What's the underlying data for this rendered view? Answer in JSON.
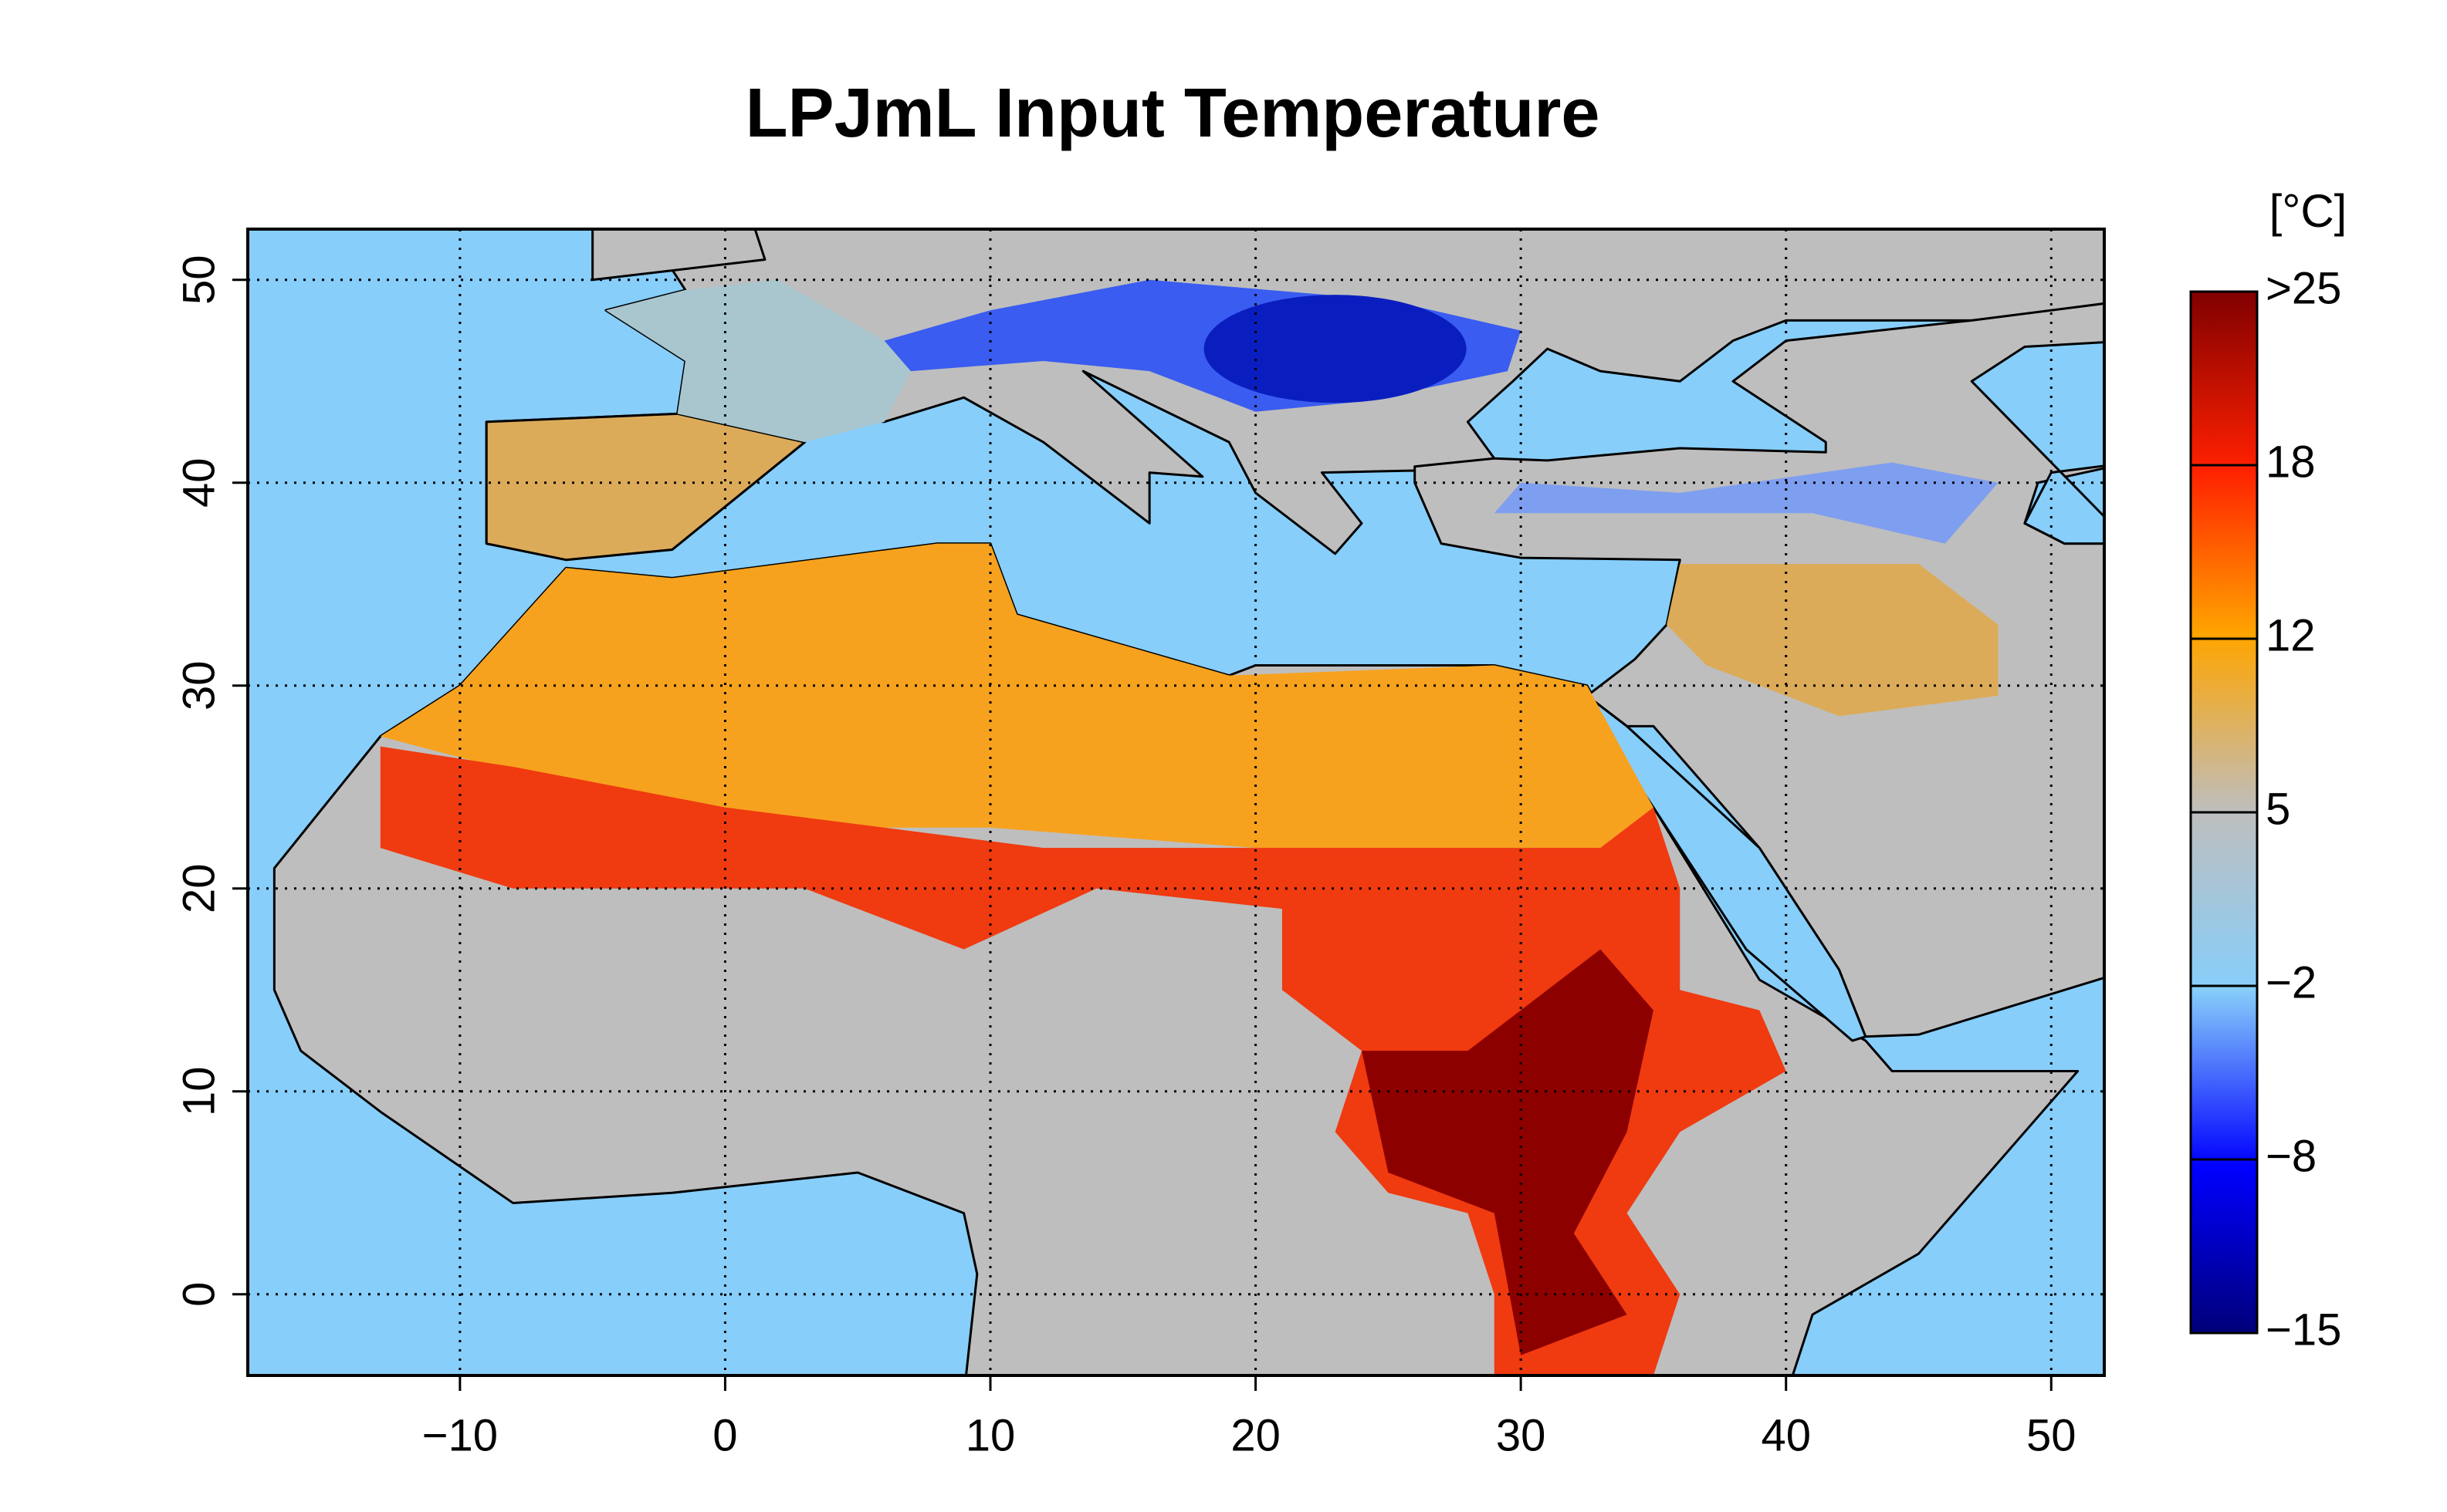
{
  "title": "LPJmL Input Temperature",
  "map": {
    "xlim": [
      -18,
      52
    ],
    "ylim": [
      -4,
      52.5
    ],
    "xticks": [
      {
        "value": -10,
        "label": "−10"
      },
      0,
      10,
      20,
      30,
      40,
      50
    ],
    "yticks": [
      0,
      10,
      20,
      30,
      40,
      50
    ],
    "grid": true
  },
  "colorbar": {
    "label": "[°C]",
    "ticks": [
      {
        "value": 25,
        "label": ">25"
      },
      18,
      12,
      5,
      {
        "value": -2,
        "label": "−2"
      },
      {
        "value": -8,
        "label": "−8"
      },
      {
        "value": -15,
        "label": "−15"
      }
    ]
  }
}
